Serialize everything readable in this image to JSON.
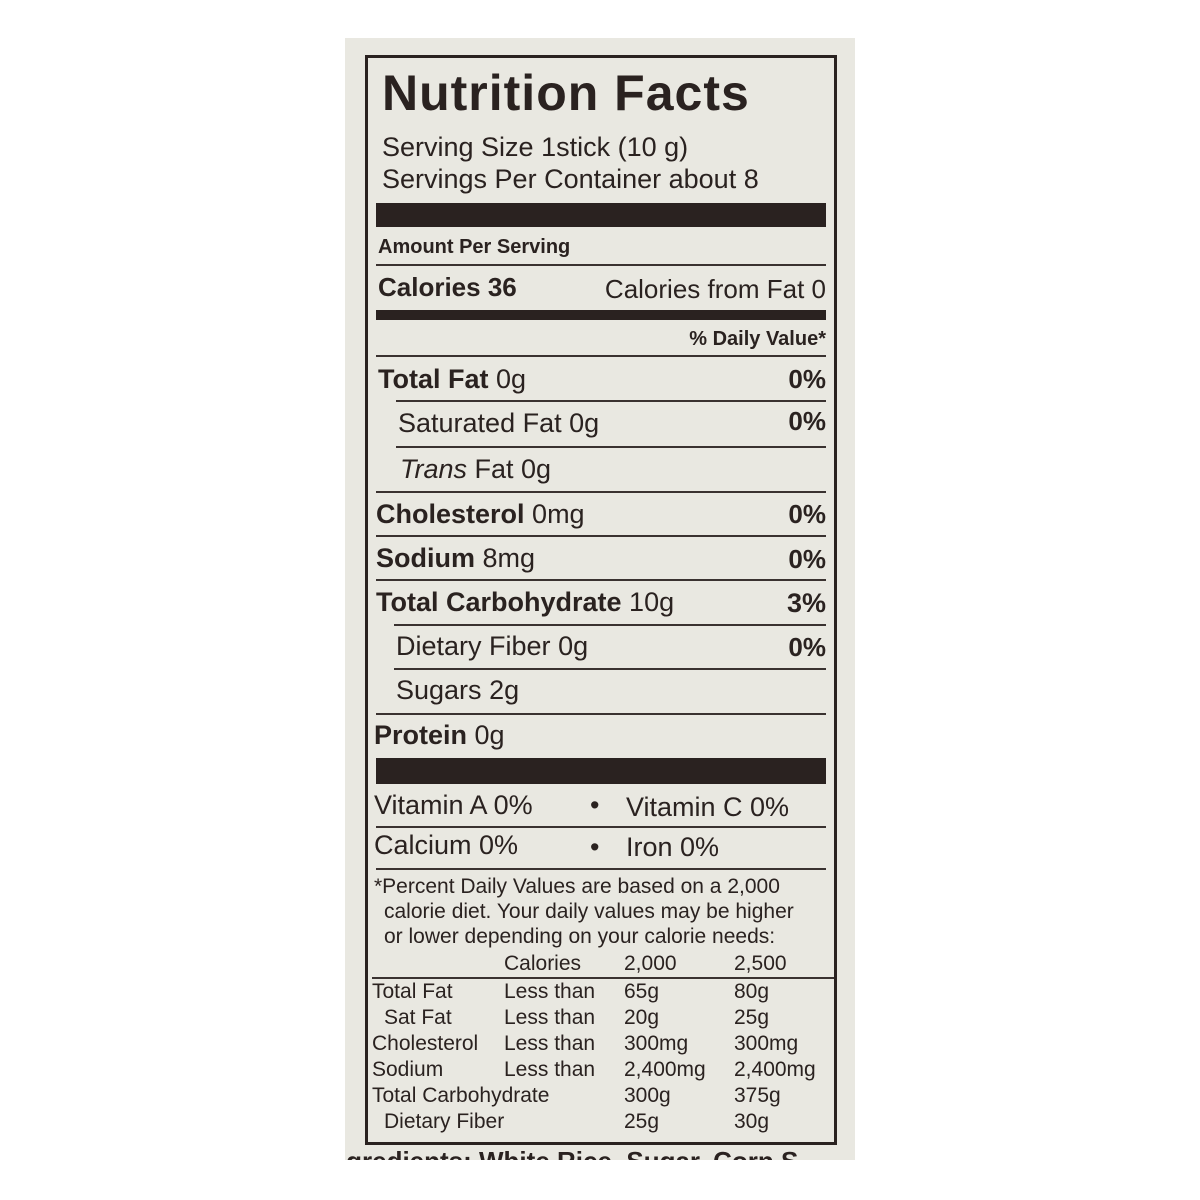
{
  "title": "Nutrition Facts",
  "serving_size": "Serving Size 1stick (10 g)",
  "servings_per_container": "Servings Per Container about 8",
  "amount_per_serving": "Amount Per Serving",
  "calories_label": "Calories 36",
  "calories_from_fat": "Calories from Fat 0",
  "daily_value_header": "% Daily Value*",
  "nutrients": [
    {
      "name": "Total Fat",
      "amount": "0g",
      "dv": "0%"
    },
    {
      "name": "Saturated Fat",
      "amount": "0g",
      "dv": "0%"
    },
    {
      "name": "Trans",
      "amount": "Fat 0g",
      "dv": ""
    },
    {
      "name": "Cholesterol",
      "amount": "0mg",
      "dv": "0%"
    },
    {
      "name": "Sodium",
      "amount": "8mg",
      "dv": "0%"
    },
    {
      "name": "Total Carbohydrate",
      "amount": "10g",
      "dv": "3%"
    },
    {
      "name": "Dietary Fiber",
      "amount": "0g",
      "dv": "0%"
    },
    {
      "name": "Sugars",
      "amount": "2g",
      "dv": ""
    },
    {
      "name": "Protein",
      "amount": "0g",
      "dv": ""
    }
  ],
  "vitamins": {
    "a": "Vitamin A 0%",
    "c": "Vitamin C 0%",
    "calcium": "Calcium 0%",
    "iron": "Iron 0%",
    "dot": "•"
  },
  "footnote": [
    "*Percent Daily Values are based on a 2,000",
    "calorie diet. Your daily values may be higher",
    "or lower depending on your calorie needs:"
  ],
  "footer_table": {
    "header": [
      "",
      "Calories",
      "2,000",
      "2,500"
    ],
    "rows": [
      [
        "Total Fat",
        "Less than",
        "65g",
        "80g"
      ],
      [
        "Sat Fat",
        "Less than",
        "20g",
        "25g"
      ],
      [
        "Cholesterol",
        "Less than",
        "300mg",
        "300mg"
      ],
      [
        "Sodium",
        "Less than",
        "2,400mg",
        "2,400mg"
      ],
      [
        "Total Carbohydrate",
        "",
        "300g",
        "375g"
      ],
      [
        "Dietary Fiber",
        "",
        "25g",
        "30g"
      ]
    ]
  },
  "ingredients_partial": "Ingredients: White Rice, Sugar, Corn S"
}
